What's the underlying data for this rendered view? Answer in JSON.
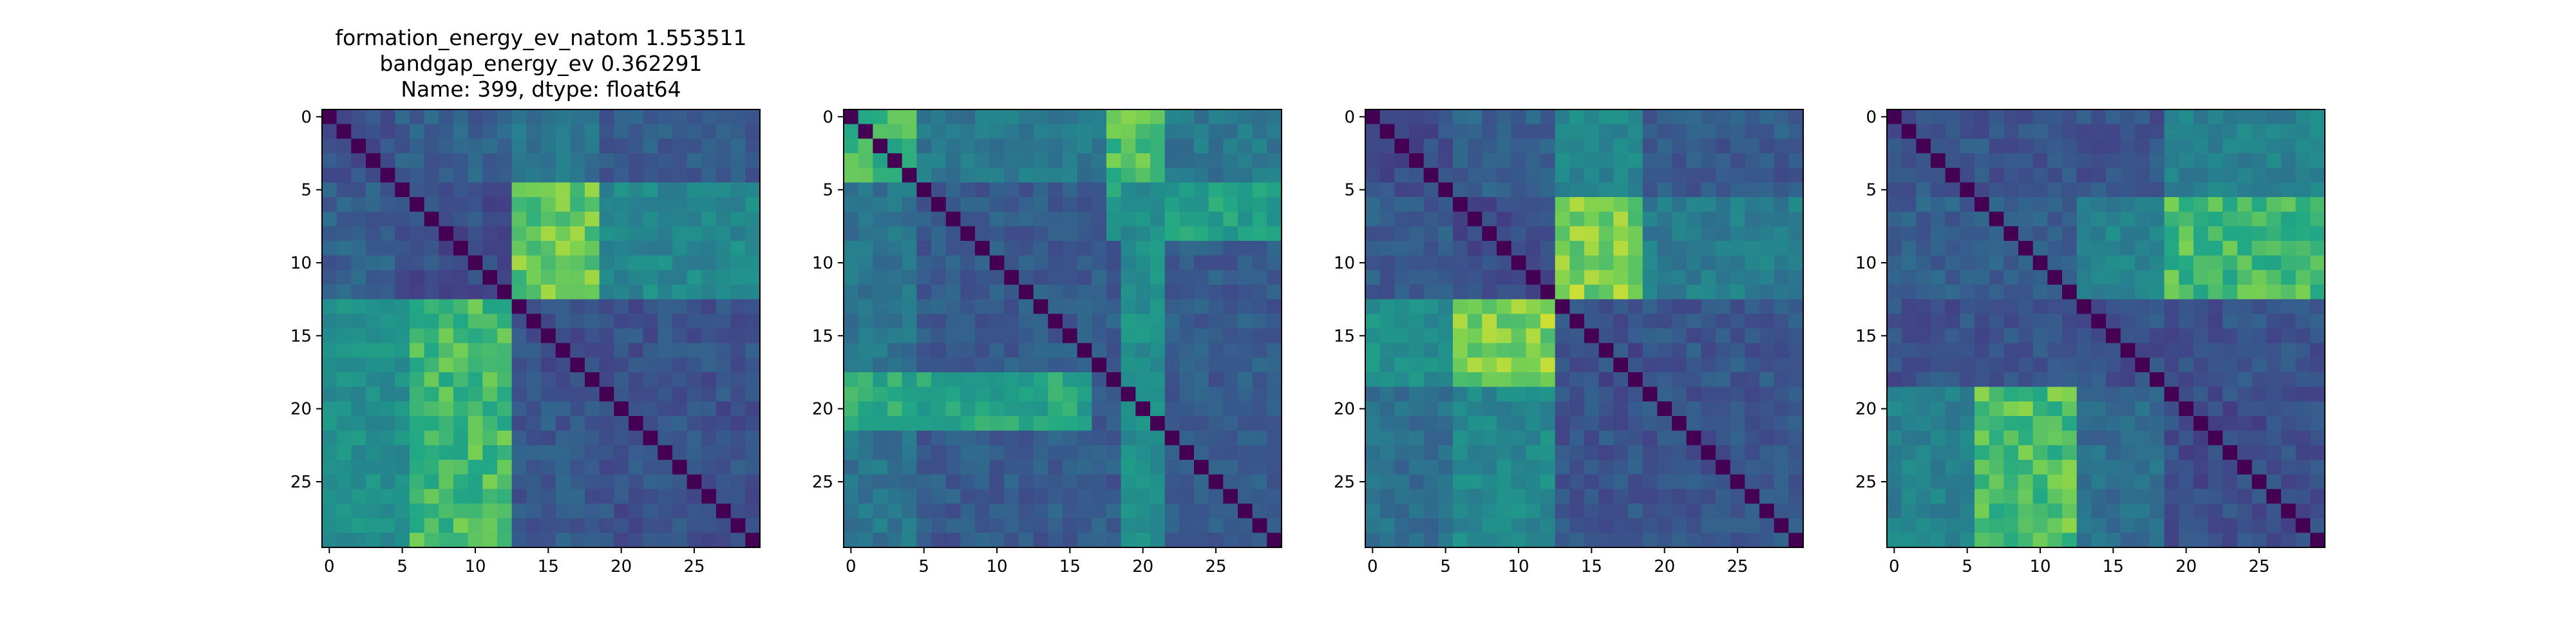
{
  "figure_title": {
    "lines": [
      "formation_energy_ev_natom    1.553511",
      "bandgap_energy_ev            0.362291",
      "Name: 399, dtype: float64"
    ]
  },
  "chart_data": [
    {
      "type": "heatmap",
      "title": "",
      "xlabel": "",
      "ylabel": "",
      "size": 30,
      "x_ticks": [
        0,
        5,
        10,
        15,
        20,
        25
      ],
      "y_ticks": [
        0,
        5,
        10,
        15,
        20,
        25
      ],
      "colormap": "viridis",
      "value_range": [
        0,
        1
      ],
      "diagonal": 0,
      "blocks": [
        {
          "rows": [
            0,
            4
          ],
          "cols": [
            0,
            4
          ],
          "value": 0.32
        },
        {
          "rows": [
            0,
            4
          ],
          "cols": [
            5,
            12
          ],
          "value": 0.38
        },
        {
          "rows": [
            0,
            4
          ],
          "cols": [
            13,
            18
          ],
          "value": 0.48
        },
        {
          "rows": [
            0,
            4
          ],
          "cols": [
            19,
            29
          ],
          "value": 0.36
        },
        {
          "rows": [
            5,
            12
          ],
          "cols": [
            0,
            4
          ],
          "value": 0.38
        },
        {
          "rows": [
            5,
            12
          ],
          "cols": [
            5,
            12
          ],
          "value": 0.3
        },
        {
          "rows": [
            5,
            12
          ],
          "cols": [
            13,
            18
          ],
          "value": 0.85
        },
        {
          "rows": [
            5,
            12
          ],
          "cols": [
            19,
            29
          ],
          "value": 0.58
        },
        {
          "rows": [
            13,
            29
          ],
          "cols": [
            0,
            5
          ],
          "value": 0.62
        },
        {
          "rows": [
            13,
            29
          ],
          "cols": [
            6,
            12
          ],
          "value": 0.8
        },
        {
          "rows": [
            13,
            18
          ],
          "cols": [
            13,
            18
          ],
          "value": 0.3
        },
        {
          "rows": [
            13,
            29
          ],
          "cols": [
            19,
            29
          ],
          "value": 0.32
        },
        {
          "rows": [
            19,
            29
          ],
          "cols": [
            13,
            18
          ],
          "value": 0.35
        }
      ]
    },
    {
      "type": "heatmap",
      "title": "",
      "xlabel": "",
      "ylabel": "",
      "size": 30,
      "x_ticks": [
        0,
        5,
        10,
        15,
        20,
        25
      ],
      "y_ticks": [
        0,
        5,
        10,
        15,
        20,
        25
      ],
      "colormap": "viridis",
      "value_range": [
        0,
        1
      ],
      "diagonal": 0,
      "blocks": [
        {
          "rows": [
            0,
            4
          ],
          "cols": [
            0,
            4
          ],
          "value": 0.78
        },
        {
          "rows": [
            0,
            4
          ],
          "cols": [
            5,
            29
          ],
          "value": 0.5
        },
        {
          "rows": [
            0,
            4
          ],
          "cols": [
            18,
            21
          ],
          "value": 0.82
        },
        {
          "rows": [
            5,
            29
          ],
          "cols": [
            0,
            4
          ],
          "value": 0.48
        },
        {
          "rows": [
            5,
            29
          ],
          "cols": [
            5,
            29
          ],
          "value": 0.36
        },
        {
          "rows": [
            5,
            8
          ],
          "cols": [
            18,
            29
          ],
          "value": 0.7
        },
        {
          "rows": [
            18,
            21
          ],
          "cols": [
            5,
            16
          ],
          "value": 0.72
        },
        {
          "rows": [
            18,
            21
          ],
          "cols": [
            0,
            4
          ],
          "value": 0.74
        },
        {
          "rows": [
            5,
            29
          ],
          "cols": [
            19,
            21
          ],
          "value": 0.62
        }
      ]
    },
    {
      "type": "heatmap",
      "title": "",
      "xlabel": "",
      "ylabel": "",
      "size": 30,
      "x_ticks": [
        0,
        5,
        10,
        15,
        20,
        25
      ],
      "y_ticks": [
        0,
        5,
        10,
        15,
        20,
        25
      ],
      "colormap": "viridis",
      "value_range": [
        0,
        1
      ],
      "diagonal": 0,
      "blocks": [
        {
          "rows": [
            0,
            5
          ],
          "cols": [
            0,
            5
          ],
          "value": 0.3
        },
        {
          "rows": [
            0,
            5
          ],
          "cols": [
            6,
            12
          ],
          "value": 0.38
        },
        {
          "rows": [
            0,
            5
          ],
          "cols": [
            13,
            18
          ],
          "value": 0.58
        },
        {
          "rows": [
            0,
            5
          ],
          "cols": [
            19,
            29
          ],
          "value": 0.36
        },
        {
          "rows": [
            6,
            12
          ],
          "cols": [
            0,
            5
          ],
          "value": 0.36
        },
        {
          "rows": [
            6,
            12
          ],
          "cols": [
            6,
            12
          ],
          "value": 0.3
        },
        {
          "rows": [
            6,
            12
          ],
          "cols": [
            13,
            18
          ],
          "value": 0.88
        },
        {
          "rows": [
            6,
            12
          ],
          "cols": [
            19,
            29
          ],
          "value": 0.52
        },
        {
          "rows": [
            13,
            18
          ],
          "cols": [
            0,
            5
          ],
          "value": 0.62
        },
        {
          "rows": [
            13,
            18
          ],
          "cols": [
            6,
            12
          ],
          "value": 0.88
        },
        {
          "rows": [
            13,
            18
          ],
          "cols": [
            13,
            18
          ],
          "value": 0.3
        },
        {
          "rows": [
            13,
            18
          ],
          "cols": [
            19,
            29
          ],
          "value": 0.34
        },
        {
          "rows": [
            19,
            29
          ],
          "cols": [
            0,
            5
          ],
          "value": 0.46
        },
        {
          "rows": [
            19,
            29
          ],
          "cols": [
            6,
            12
          ],
          "value": 0.58
        },
        {
          "rows": [
            19,
            29
          ],
          "cols": [
            13,
            29
          ],
          "value": 0.33
        }
      ]
    },
    {
      "type": "heatmap",
      "title": "",
      "xlabel": "",
      "ylabel": "",
      "size": 30,
      "x_ticks": [
        0,
        5,
        10,
        15,
        20,
        25
      ],
      "y_ticks": [
        0,
        5,
        10,
        15,
        20,
        25
      ],
      "colormap": "viridis",
      "value_range": [
        0,
        1
      ],
      "diagonal": 0,
      "blocks": [
        {
          "rows": [
            0,
            5
          ],
          "cols": [
            0,
            18
          ],
          "value": 0.33
        },
        {
          "rows": [
            0,
            5
          ],
          "cols": [
            19,
            29
          ],
          "value": 0.55
        },
        {
          "rows": [
            6,
            12
          ],
          "cols": [
            0,
            18
          ],
          "value": 0.38
        },
        {
          "rows": [
            6,
            12
          ],
          "cols": [
            13,
            18
          ],
          "value": 0.55
        },
        {
          "rows": [
            6,
            12
          ],
          "cols": [
            19,
            29
          ],
          "value": 0.8
        },
        {
          "rows": [
            13,
            18
          ],
          "cols": [
            0,
            29
          ],
          "value": 0.32
        },
        {
          "rows": [
            19,
            29
          ],
          "cols": [
            0,
            5
          ],
          "value": 0.55
        },
        {
          "rows": [
            19,
            29
          ],
          "cols": [
            6,
            12
          ],
          "value": 0.82
        },
        {
          "rows": [
            19,
            29
          ],
          "cols": [
            13,
            18
          ],
          "value": 0.45
        },
        {
          "rows": [
            19,
            29
          ],
          "cols": [
            19,
            29
          ],
          "value": 0.3
        }
      ]
    }
  ]
}
